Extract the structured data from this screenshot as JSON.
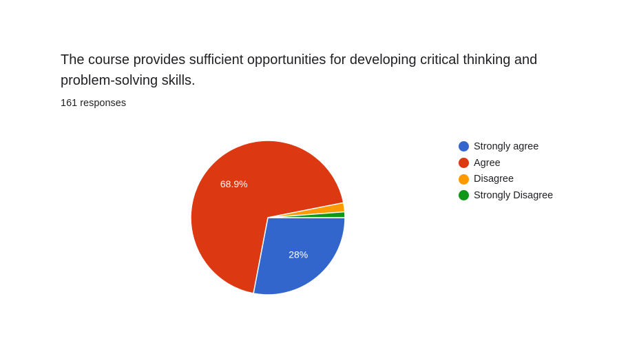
{
  "form_card": {
    "question": "The course provides sufficient opportunities for developing critical thinking and problem-solving skills.",
    "responses": "161 responses"
  },
  "chart_data": {
    "type": "pie",
    "categories": [
      "Strongly agree",
      "Agree",
      "Disagree",
      "Strongly Disagree"
    ],
    "values": [
      28.0,
      68.9,
      1.9,
      1.2
    ],
    "data_labels": [
      "28%",
      "68.9%",
      "",
      ""
    ],
    "colors": [
      "#3366cc",
      "#dc3912",
      "#ff9900",
      "#109618"
    ],
    "legend_position": "right"
  }
}
